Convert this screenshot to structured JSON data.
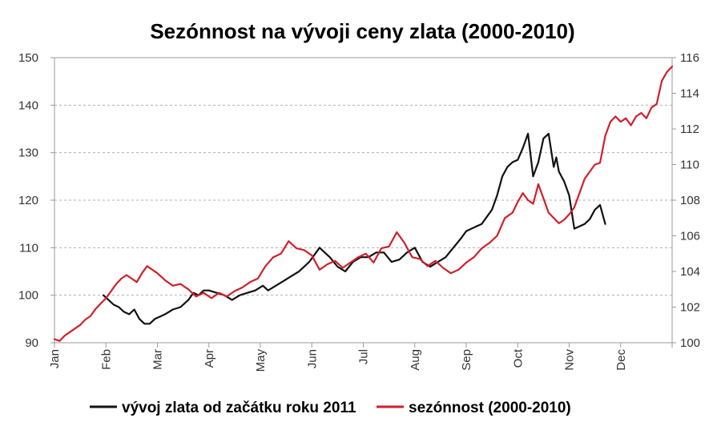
{
  "chart_data": {
    "type": "line",
    "title": "Sezónnost na vývoji ceny zlata (2000-2010)",
    "xlabel": "",
    "ylabel": "",
    "x_ticks": [
      "Jan",
      "Feb",
      "Mar",
      "Apr",
      "May",
      "Jun",
      "Jul",
      "Aug",
      "Sep",
      "Oct",
      "Nov",
      "Dec"
    ],
    "x_range": [
      0,
      12
    ],
    "y_left": {
      "range": [
        90,
        150
      ],
      "ticks": [
        90,
        100,
        110,
        120,
        130,
        140,
        150
      ]
    },
    "y_right": {
      "range": [
        100,
        116
      ],
      "ticks": [
        100,
        102,
        104,
        106,
        108,
        110,
        112,
        114,
        116
      ]
    },
    "grid": "horizontal dashed",
    "legend_position": "bottom",
    "series": [
      {
        "name": "vývoj zlata od začátku roku 2011",
        "color": "#111111",
        "axis": "left",
        "x": [
          0.95,
          1.05,
          1.15,
          1.25,
          1.35,
          1.45,
          1.55,
          1.65,
          1.75,
          1.85,
          1.95,
          2.05,
          2.15,
          2.3,
          2.45,
          2.6,
          2.7,
          2.8,
          2.9,
          3.0,
          3.15,
          3.3,
          3.45,
          3.6,
          3.75,
          3.9,
          4.05,
          4.15,
          4.3,
          4.45,
          4.6,
          4.75,
          4.85,
          4.95,
          5.05,
          5.15,
          5.25,
          5.35,
          5.5,
          5.65,
          5.8,
          5.95,
          6.1,
          6.25,
          6.4,
          6.55,
          6.7,
          6.85,
          7.0,
          7.15,
          7.3,
          7.45,
          7.6,
          7.75,
          7.9,
          8.0,
          8.1,
          8.2,
          8.3,
          8.4,
          8.5,
          8.6,
          8.7,
          8.8,
          8.9,
          9.0,
          9.1,
          9.2,
          9.3,
          9.4,
          9.5,
          9.6,
          9.7,
          9.75,
          9.8,
          9.9,
          10.0,
          10.1,
          10.2,
          10.3,
          10.4,
          10.5,
          10.6,
          10.7
        ],
        "y": [
          100,
          99,
          98,
          97.5,
          96.5,
          96,
          97,
          95,
          94,
          94,
          95,
          95.5,
          96,
          97,
          97.5,
          99,
          100.5,
          100,
          101,
          101,
          100.5,
          100,
          99,
          100,
          100.5,
          101,
          102,
          101,
          102,
          103,
          104,
          105,
          106,
          107,
          108.5,
          110,
          109,
          108,
          106,
          105,
          107,
          108,
          108,
          109,
          109,
          107,
          107.5,
          109,
          110,
          107,
          106,
          107,
          108,
          110,
          112,
          113.5,
          114,
          114.5,
          115,
          116.5,
          118,
          121,
          125,
          127,
          128,
          128.5,
          131,
          134,
          125,
          128,
          133,
          134,
          127,
          129,
          126,
          124,
          121,
          114,
          114.5,
          115,
          116,
          118,
          119,
          115
        ]
      },
      {
        "name": "sezónnost (2000-2010)",
        "color": "#d0202a",
        "axis": "right",
        "x": [
          0.0,
          0.1,
          0.2,
          0.3,
          0.4,
          0.5,
          0.6,
          0.7,
          0.8,
          0.9,
          1.0,
          1.1,
          1.2,
          1.3,
          1.4,
          1.5,
          1.6,
          1.7,
          1.8,
          1.9,
          2.0,
          2.15,
          2.3,
          2.45,
          2.6,
          2.75,
          2.9,
          3.05,
          3.2,
          3.35,
          3.5,
          3.65,
          3.8,
          3.95,
          4.1,
          4.25,
          4.4,
          4.55,
          4.7,
          4.85,
          5.0,
          5.15,
          5.3,
          5.45,
          5.6,
          5.75,
          5.9,
          6.05,
          6.2,
          6.35,
          6.5,
          6.65,
          6.8,
          6.95,
          7.1,
          7.25,
          7.4,
          7.55,
          7.7,
          7.85,
          8.0,
          8.15,
          8.3,
          8.45,
          8.6,
          8.75,
          8.9,
          9.0,
          9.1,
          9.2,
          9.3,
          9.4,
          9.5,
          9.6,
          9.7,
          9.8,
          9.9,
          10.0,
          10.1,
          10.2,
          10.3,
          10.4,
          10.5,
          10.6,
          10.7,
          10.8,
          10.9,
          11.0,
          11.1,
          11.2,
          11.3,
          11.4,
          11.5,
          11.6,
          11.7,
          11.8,
          11.9,
          12.0
        ],
        "y": [
          100.2,
          100.1,
          100.4,
          100.6,
          100.8,
          101.0,
          101.3,
          101.5,
          101.9,
          102.2,
          102.5,
          102.9,
          103.3,
          103.6,
          103.8,
          103.6,
          103.4,
          103.9,
          104.3,
          104.1,
          103.9,
          103.5,
          103.2,
          103.3,
          103.0,
          102.6,
          102.8,
          102.5,
          102.8,
          102.6,
          102.9,
          103.1,
          103.4,
          103.6,
          104.3,
          104.8,
          105.0,
          105.7,
          105.3,
          105.2,
          104.9,
          104.1,
          104.4,
          104.6,
          104.2,
          104.5,
          104.8,
          105.0,
          104.5,
          105.3,
          105.4,
          106.2,
          105.6,
          104.8,
          104.7,
          104.3,
          104.6,
          104.2,
          103.9,
          104.1,
          104.5,
          104.8,
          105.3,
          105.6,
          106.0,
          107.0,
          107.3,
          107.9,
          108.4,
          108.0,
          107.8,
          108.9,
          108.1,
          107.3,
          107.0,
          106.7,
          106.9,
          107.2,
          107.6,
          108.4,
          109.2,
          109.6,
          110.0,
          110.1,
          111.6,
          112.4,
          112.7,
          112.4,
          112.6,
          112.2,
          112.7,
          112.9,
          112.6,
          113.2,
          113.4,
          114.7,
          115.2,
          115.5
        ]
      }
    ]
  }
}
